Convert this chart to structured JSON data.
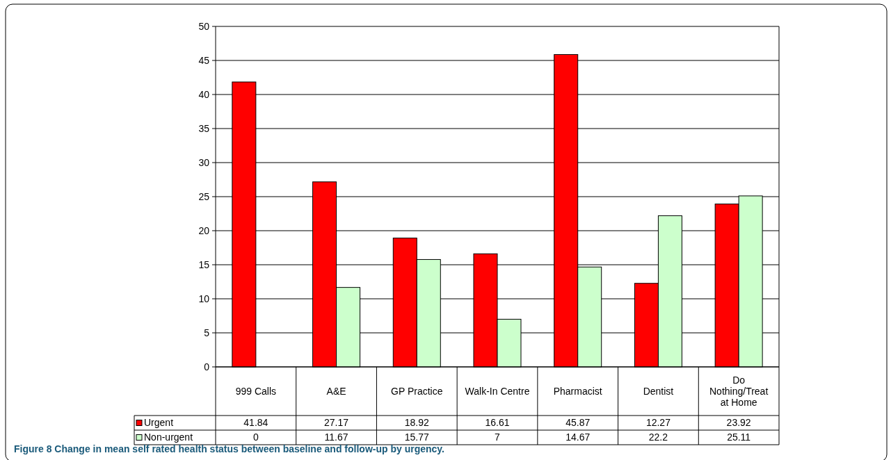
{
  "chart_data": {
    "type": "bar",
    "categories": [
      "999 Calls",
      "A&E",
      "GP Practice",
      "Walk-In Centre",
      "Pharmacist",
      "Dentist",
      "Do Nothing/Treat at Home"
    ],
    "series": [
      {
        "name": "Urgent",
        "color": "#ff0000",
        "values": [
          41.84,
          27.17,
          18.92,
          16.61,
          45.87,
          12.27,
          23.92
        ]
      },
      {
        "name": "Non-urgent",
        "color": "#ccffcc",
        "values": [
          0,
          11.67,
          15.77,
          7,
          14.67,
          22.2,
          25.11
        ]
      }
    ],
    "ylim": [
      0,
      50
    ],
    "yticks": [
      0,
      5,
      10,
      15,
      20,
      25,
      30,
      35,
      40,
      45,
      50
    ],
    "grid": "y",
    "legend": "bottom left",
    "data_labels": true,
    "annotations": [
      "Figure 8 Change in mean self rated health status between baseline and follow-up by urgency."
    ]
  }
}
